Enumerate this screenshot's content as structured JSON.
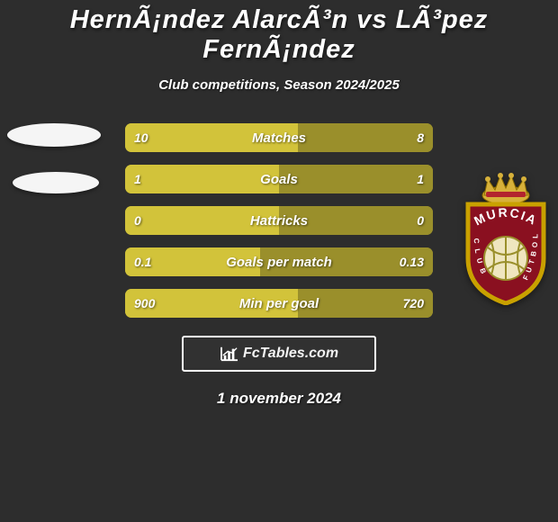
{
  "background_color": "#2d2d2d",
  "title": {
    "text": "HernÃ¡ndez AlarcÃ³n vs LÃ³pez FernÃ¡ndez",
    "fontsize": 29,
    "color": "#ffffff"
  },
  "subtitle": {
    "text": "Club competitions, Season 2024/2025",
    "fontsize": 15,
    "color": "#ffffff"
  },
  "bars_config": {
    "height": 32,
    "border_radius": 7,
    "gap": 14,
    "base_color": "#9a8f2b",
    "left_fill_color": "#d2c33a",
    "right_fill_color": "#9a8f2b",
    "value_fontsize": 14,
    "label_fontsize": 15,
    "text_color": "#ffffff"
  },
  "bars": [
    {
      "label": "Matches",
      "left_value": "10",
      "right_value": "8",
      "left_pct": 56,
      "right_pct": 44
    },
    {
      "label": "Goals",
      "left_value": "1",
      "right_value": "1",
      "left_pct": 50,
      "right_pct": 50
    },
    {
      "label": "Hattricks",
      "left_value": "0",
      "right_value": "0",
      "left_pct": 50,
      "right_pct": 50
    },
    {
      "label": "Goals per match",
      "left_value": "0.1",
      "right_value": "0.13",
      "left_pct": 44,
      "right_pct": 56
    },
    {
      "label": "Min per goal",
      "left_value": "900",
      "right_value": "720",
      "left_pct": 56,
      "right_pct": 44
    }
  ],
  "left_badge": {
    "type": "placeholder-ellipses",
    "color": "#f5f5f5"
  },
  "right_badge": {
    "type": "murcia-crest",
    "outer_border": "#c9a100",
    "body_color": "#8a1020",
    "crown_gold": "#d7b13a",
    "crown_red": "#b3242e",
    "text": "MURCIA",
    "side_text_left": "CLUB",
    "side_text_right": "FUTBOL",
    "ball_color": "#efe6bf",
    "ball_lines": "#9a8f2b",
    "text_color": "#ffffff"
  },
  "brand": {
    "text": "FcTables.com",
    "fontsize": 16,
    "border_color": "#ffffff",
    "icon_color": "#ffffff"
  },
  "date": {
    "text": "1 november 2024",
    "fontsize": 17,
    "color": "#ffffff"
  }
}
